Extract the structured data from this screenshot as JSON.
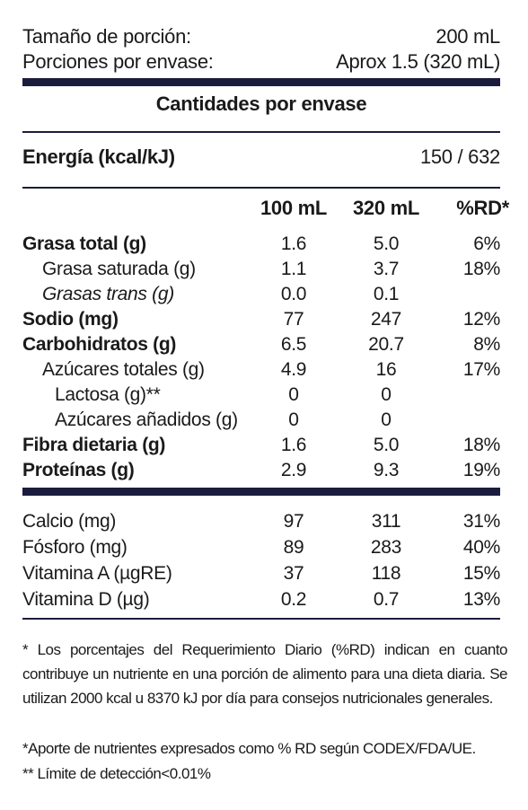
{
  "serving": {
    "rows": [
      [
        "Tamaño de porción:",
        "200 mL"
      ],
      [
        "Porciones por envase:",
        "Aprox 1.5 (320 mL)"
      ]
    ]
  },
  "section_title": "Cantidades por envase",
  "energy": {
    "label": "Energía (kcal/kJ)",
    "value": "150 / 632"
  },
  "table": {
    "columns": [
      "100 mL",
      "320 mL",
      "%RD*"
    ],
    "rows": [
      [
        "Grasa total (g)",
        "1.6",
        "5.0",
        "6%"
      ],
      [
        "Grasa saturada (g)",
        "1.1",
        "3.7",
        "18%"
      ],
      [
        "Grasas trans (g)",
        "0.0",
        "0.1"
      ],
      [
        "Sodio (mg)",
        "77",
        "247",
        "12%"
      ],
      [
        "Carbohidratos (g)",
        "6.5",
        "20.7",
        "8%"
      ],
      [
        "Azúcares totales (g)",
        "4.9",
        "16",
        "17%"
      ],
      [
        "Lactosa (g)**",
        "0",
        "0"
      ],
      [
        "Azúcares añadidos (g)",
        "0",
        "0"
      ],
      [
        "Fibra dietaria (g)",
        "1.6",
        "5.0",
        "18%"
      ],
      [
        "Proteínas (g)",
        "2.9",
        "9.3",
        "19%"
      ]
    ]
  },
  "minerals": {
    "rows": [
      [
        "Calcio (mg)",
        "97",
        "311",
        "31%"
      ],
      [
        "Fósforo (mg)",
        "89",
        "283",
        "40%"
      ],
      [
        "Vitamina A (µgRE)",
        "37",
        "118",
        "15%"
      ],
      [
        "Vitamina D (µg)",
        "0.2",
        "0.7",
        "13%"
      ]
    ]
  },
  "footnotes": [
    "* Los porcentajes del Requerimiento Diario (%RD) indican en cuanto contribuye un nutriente en una porción de alimento para una dieta diaria. Se utilizan 2000 kcal u 8370 kJ por día para consejos nutricionales generales.",
    "*Aporte de nutrientes expresados como % RD según CODEX/FDA/UE.",
    "** Límite de detección<0.01%"
  ]
}
